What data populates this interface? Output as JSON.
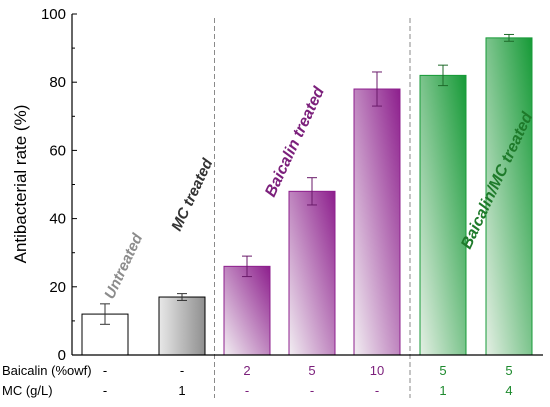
{
  "chart_data": {
    "type": "bar",
    "ylabel": "Antibacterial rate (%)",
    "ylim": [
      0,
      100
    ],
    "yticks": [
      0,
      20,
      40,
      60,
      80,
      100
    ],
    "values": [
      12,
      17,
      26,
      48,
      78,
      82,
      93
    ],
    "errors": [
      3,
      1,
      3,
      4,
      5,
      3,
      1
    ],
    "bar_styles": [
      "white",
      "gray",
      "purple",
      "purple",
      "purple",
      "green",
      "green"
    ],
    "row_labels": [
      "Baicalin (%owf)",
      "MC (g/L)"
    ],
    "rows": [
      [
        "-",
        "-",
        "2",
        "5",
        "10",
        "5",
        "5"
      ],
      [
        "-",
        "1",
        "-",
        "-",
        "-",
        "1",
        "4"
      ]
    ],
    "row_colors": [
      "#000000",
      "#000000",
      "#7b1f7b",
      "#7b1f7b",
      "#7b1f7b",
      "#1e8a2e",
      "#1e8a2e"
    ],
    "group_annotations": [
      {
        "text": "Untreated",
        "color": "#8c8c8c"
      },
      {
        "text": "MC treated",
        "color": "#333333"
      },
      {
        "text": "Baicalin treated",
        "color": "#7b1f7b"
      },
      {
        "text": "Baicalin/MC treated",
        "color": "#1e7a2a"
      }
    ],
    "dividers_after_bar": [
      1,
      4
    ],
    "grid": false
  }
}
